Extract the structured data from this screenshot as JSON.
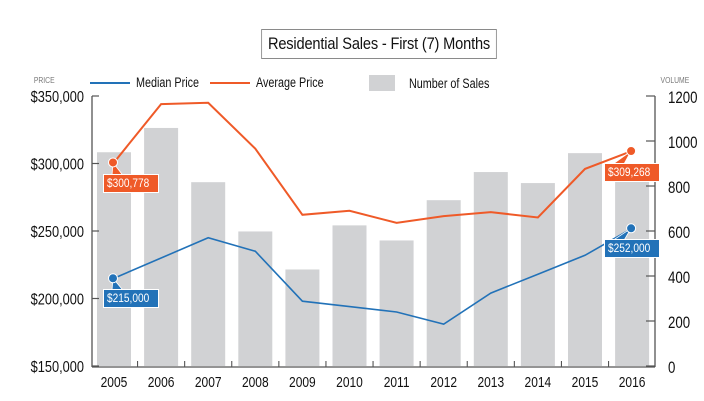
{
  "chart_data": {
    "type": "bar",
    "title": "Residential Sales - First (7) Months",
    "categories": [
      "2005",
      "2006",
      "2007",
      "2008",
      "2009",
      "2010",
      "2011",
      "2012",
      "2013",
      "2014",
      "2015",
      "2016"
    ],
    "series": [
      {
        "name": "Median Price",
        "type": "line",
        "axis": "left",
        "color": "#2272b8",
        "values": [
          215000,
          230000,
          245000,
          235000,
          198000,
          194000,
          190000,
          181000,
          204000,
          218000,
          232000,
          252000
        ]
      },
      {
        "name": "Average Price",
        "type": "line",
        "axis": "left",
        "color": "#ef5a28",
        "values": [
          300778,
          344000,
          345000,
          311000,
          262000,
          265000,
          256000,
          261000,
          264000,
          260000,
          296000,
          309268
        ]
      },
      {
        "name": "Number of Sales",
        "type": "bar",
        "axis": "right",
        "color": "#d1d2d4",
        "values": [
          950,
          1058,
          817,
          598,
          429,
          625,
          558,
          737,
          862,
          813,
          946,
          902
        ]
      }
    ],
    "left_axis": {
      "label": "PRICE",
      "ylim": [
        150000,
        350000
      ],
      "ticks": [
        150000,
        200000,
        250000,
        300000,
        350000
      ],
      "tick_labels": [
        "$150,000",
        "$200,000",
        "$250,000",
        "$300,000",
        "$350,000"
      ]
    },
    "right_axis": {
      "label": "VOLUME",
      "ylim": [
        0,
        1200
      ],
      "ticks": [
        0,
        200,
        400,
        600,
        800,
        1000,
        1200
      ],
      "tick_labels": [
        "0",
        "200",
        "400",
        "600",
        "800",
        "1000",
        "1200"
      ]
    },
    "legend": {
      "placement": "top",
      "entries": [
        "Median Price",
        "Average Price",
        "Number of Sales"
      ]
    },
    "annotations": [
      {
        "series": "Average Price",
        "category": "2005",
        "text": "$300,778"
      },
      {
        "series": "Median Price",
        "category": "2005",
        "text": "$215,000"
      },
      {
        "series": "Average Price",
        "category": "2016",
        "text": "$309,268"
      },
      {
        "series": "Median Price",
        "category": "2016",
        "text": "$252,000"
      }
    ],
    "grid": false
  }
}
